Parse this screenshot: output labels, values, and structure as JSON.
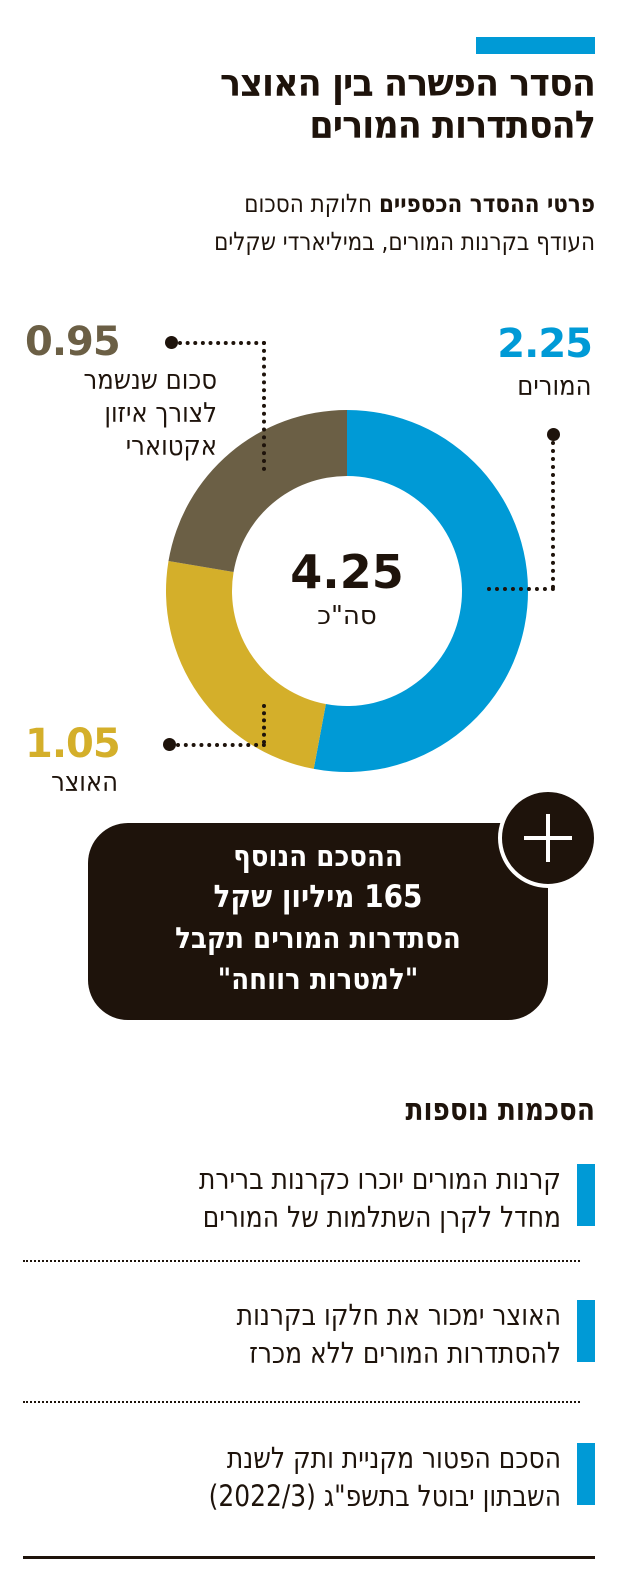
{
  "header": {
    "title_line1": "הסדר הפשרה בין האוצר",
    "title_line2": "להסתדרות המורים",
    "subtitle_bold": "פרטי ההסדר הכספיים",
    "subtitle_rest_line1": " חלוקת הסכום",
    "subtitle_line2": "העודף בקרנות המורים, במיליארדי שקלים"
  },
  "colors": {
    "teachers": "#009ad6",
    "treasury": "#d4af2a",
    "actuarial": "#6b5f45",
    "dark": "#1e130b"
  },
  "donut": {
    "total_value": "4.25",
    "total_label": "סה\"כ",
    "segments": [
      {
        "value": "2.25",
        "label": "המורים"
      },
      {
        "value": "1.05",
        "label": "האוצר"
      },
      {
        "value": "0.95",
        "label_line1": "סכום שנשמר",
        "label_line2": "לצורך איזון",
        "label_line3": "אקטוארי"
      }
    ]
  },
  "callout": {
    "line1": "ההסכם הנוסף",
    "line2": "165 מיליון שקל",
    "line3": "הסתדרות המורים תקבל",
    "line4": "\"למטרות רווחה\"",
    "icon": "plus-icon"
  },
  "agreements": {
    "title": "הסכמות נוספות",
    "items": [
      {
        "line1": "קרנות המורים יוכרו כקרנות ברירת",
        "line2": "מחדל לקרן השתלמות של המורים"
      },
      {
        "line1": "האוצר ימכור את חלקו בקרנות",
        "line2": "להסתדרות המורים ללא מכרז"
      },
      {
        "line1": "הסכם הפטור מקניית ותק לשנת",
        "line2": "השבתון יבוטל בתשפ\"ג (2022/3)"
      }
    ]
  },
  "chart_data": {
    "type": "pie",
    "subtype": "donut",
    "title": "הסדר הפשרה בין האוצר להסתדרות המורים",
    "subtitle": "פרטי ההסדר הכספיים חלוקת הסכום העודף בקרנות המורים, במיליארדי שקלים",
    "unit": "מיליארדי שקלים",
    "categories": [
      "המורים",
      "האוצר",
      "סכום שנשמר לצורך איזון אקטוארי"
    ],
    "values": [
      2.25,
      1.05,
      0.95
    ],
    "colors": [
      "#009ad6",
      "#d4af2a",
      "#6b5f45"
    ],
    "total": 4.25,
    "center_label": "סה\"כ",
    "annotation": "ההסכם הנוסף 165 מיליון שקל הסתדרות המורים תקבל \"למטרות רווחה\""
  }
}
